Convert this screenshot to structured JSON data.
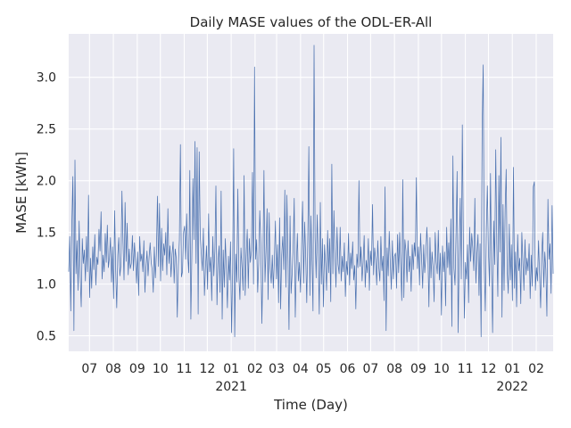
{
  "chart_data": {
    "type": "line",
    "title": "Daily MASE values of the ODL-ER-All",
    "xlabel": "Time (Day)",
    "ylabel": "MASE [kWh]",
    "x_start": "2020-06-04",
    "x_end": "2022-02-23",
    "ylim": [
      0.35,
      3.42
    ],
    "y_ticks": [
      0.5,
      1.0,
      1.5,
      2.0,
      2.5,
      3.0
    ],
    "y_tick_labels": [
      "0.5",
      "1.0",
      "1.5",
      "2.0",
      "2.5",
      "3.0"
    ],
    "x_ticks": [
      {
        "date": "2020-07-01",
        "label": "07",
        "year": ""
      },
      {
        "date": "2020-08-01",
        "label": "08",
        "year": ""
      },
      {
        "date": "2020-09-01",
        "label": "09",
        "year": ""
      },
      {
        "date": "2020-10-01",
        "label": "10",
        "year": ""
      },
      {
        "date": "2020-11-01",
        "label": "11",
        "year": ""
      },
      {
        "date": "2020-12-01",
        "label": "12",
        "year": ""
      },
      {
        "date": "2021-01-01",
        "label": "01",
        "year": "2021"
      },
      {
        "date": "2021-02-01",
        "label": "02",
        "year": ""
      },
      {
        "date": "2021-03-01",
        "label": "03",
        "year": ""
      },
      {
        "date": "2021-04-01",
        "label": "04",
        "year": ""
      },
      {
        "date": "2021-05-01",
        "label": "05",
        "year": ""
      },
      {
        "date": "2021-06-01",
        "label": "06",
        "year": ""
      },
      {
        "date": "2021-07-01",
        "label": "07",
        "year": ""
      },
      {
        "date": "2021-08-01",
        "label": "08",
        "year": ""
      },
      {
        "date": "2021-09-01",
        "label": "09",
        "year": ""
      },
      {
        "date": "2021-10-01",
        "label": "10",
        "year": ""
      },
      {
        "date": "2021-11-01",
        "label": "11",
        "year": ""
      },
      {
        "date": "2021-12-01",
        "label": "12",
        "year": ""
      },
      {
        "date": "2022-01-01",
        "label": "01",
        "year": "2022"
      },
      {
        "date": "2022-02-01",
        "label": "02",
        "year": ""
      }
    ],
    "grid": true,
    "legend": "none",
    "line_color": "#4c72b0",
    "background_color": "#eaeaf2",
    "grid_color": "#ffffff",
    "series": [
      {
        "values": [
          1.12,
          1.46,
          0.74,
          1.58,
          2.04,
          0.55,
          2.2,
          1.1,
          1.42,
          0.94,
          1.61,
          1.07,
          0.78,
          1.44,
          1.2,
          1.33,
          1.03,
          1.46,
          1.12,
          1.86,
          0.87,
          1.25,
          0.96,
          1.36,
          1.14,
          1.48,
          0.99,
          1.26,
          1.19,
          1.53,
          1.32,
          1.7,
          1.05,
          1.28,
          1.12,
          1.49,
          1.21,
          1.57,
          1.16,
          1.25,
          1.45,
          1.02,
          1.36,
          0.86,
          1.71,
          1.13,
          0.77,
          1.28,
          1.45,
          1.08,
          1.18,
          1.9,
          1.41,
          1.04,
          1.79,
          1.22,
          1.59,
          1.09,
          1.34,
          1.15,
          1.2,
          1.47,
          1.13,
          1.4,
          1.23,
          1.01,
          1.31,
          0.89,
          1.46,
          1.22,
          1.29,
          1.12,
          1.42,
          0.92,
          1.16,
          1.32,
          1.08,
          1.26,
          1.4,
          1.21,
          1.14,
          0.92,
          1.36,
          1.06,
          1.29,
          1.85,
          1.17,
          1.78,
          1.03,
          1.54,
          1.13,
          1.39,
          1.28,
          1.5,
          1.09,
          1.73,
          1.2,
          1.37,
          1.07,
          1.29,
          1.41,
          1.01,
          1.34,
          1.25,
          0.68,
          1.18,
          1.43,
          2.35,
          1.07,
          1.12,
          1.5,
          1.56,
          1.24,
          1.68,
          1.28,
          1.11,
          2.1,
          0.66,
          1.31,
          2.02,
          1.43,
          2.38,
          1.2,
          2.32,
          0.71,
          2.28,
          1.46,
          1.3,
          1.13,
          1.54,
          0.89,
          1.16,
          1.37,
          0.95,
          1.68,
          1.12,
          1.26,
          0.84,
          1.46,
          1.08,
          1.32,
          1.95,
          0.8,
          1.21,
          1.37,
          0.92,
          1.9,
          0.66,
          1.33,
          0.97,
          1.44,
          1.14,
          0.77,
          1.27,
          1.04,
          1.41,
          0.53,
          1.12,
          2.31,
          0.49,
          1.29,
          1.02,
          1.92,
          1.07,
          0.85,
          1.35,
          1.16,
          0.94,
          2.05,
          0.89,
          1.27,
          1.53,
          0.96,
          1.44,
          1.21,
          1.32,
          2.08,
          1.0,
          3.1,
          1.24,
          1.43,
          0.92,
          1.2,
          1.71,
          1.39,
          0.62,
          1.17,
          2.1,
          1.02,
          1.33,
          1.73,
          0.85,
          1.69,
          1.15,
          1.01,
          1.28,
          0.96,
          1.24,
          1.61,
          1.05,
          1.38,
          0.82,
          1.64,
          0.76,
          1.28,
          1.46,
          1.14,
          1.91,
          0.97,
          1.86,
          1.24,
          0.56,
          1.66,
          0.91,
          1.1,
          1.36,
          1.83,
          0.68,
          1.17,
          1.49,
          1.03,
          1.21,
          0.92,
          1.39,
          1.8,
          1.01,
          1.6,
          1.26,
          0.82,
          1.43,
          2.33,
          0.89,
          1.66,
          1.22,
          0.74,
          3.31,
          1.45,
          1.06,
          1.67,
          1.28,
          0.71,
          1.79,
          1.0,
          1.44,
          0.78,
          1.38,
          1.2,
          0.94,
          1.52,
          1.11,
          1.44,
          0.83,
          2.16,
          1.1,
          1.71,
          1.28,
          0.97,
          1.55,
          1.19,
          1.1,
          1.55,
          1.03,
          1.27,
          1.12,
          1.4,
          0.88,
          1.22,
          1.09,
          1.49,
          0.99,
          1.3,
          1.15,
          1.41,
          1.04,
          1.18,
          0.76,
          1.29,
          1.16,
          2.0,
          1.17,
          1.36,
          1.03,
          1.21,
          1.47,
          0.97,
          1.23,
          1.11,
          1.44,
          0.94,
          1.32,
          1.18,
          1.77,
          1.09,
          1.35,
          1.24,
          0.99,
          1.42,
          1.16,
          1.03,
          1.46,
          1.13,
          1.27,
          0.84,
          1.94,
          0.55,
          1.35,
          1.08,
          1.51,
          1.21,
          0.95,
          1.42,
          1.05,
          1.27,
          1.3,
          0.96,
          1.48,
          1.11,
          1.5,
          1.18,
          0.84,
          2.01,
          0.87,
          1.43,
          1.32,
          1.02,
          1.42,
          1.12,
          1.27,
          0.93,
          1.38,
          1.14,
          1.4,
          1.27,
          2.03,
          1.15,
          1.36,
          0.99,
          1.49,
          1.24,
          0.96,
          1.38,
          1.11,
          1.27,
          1.55,
          1.32,
          0.78,
          1.45,
          1.06,
          1.31,
          1.16,
          0.83,
          1.5,
          1.22,
          1.1,
          1.52,
          1.04,
          1.3,
          0.7,
          1.37,
          1.12,
          1.31,
          0.79,
          1.55,
          1.16,
          1.4,
          1.09,
          1.63,
          0.59,
          2.24,
          1.15,
          0.99,
          1.5,
          2.09,
          0.53,
          1.27,
          1.83,
          1.05,
          2.54,
          1.42,
          0.67,
          1.21,
          1.05,
          1.38,
          0.82,
          1.55,
          1.22,
          1.49,
          1.35,
          1.13,
          1.83,
          1.01,
          1.29,
          1.48,
          0.89,
          1.39,
          0.49,
          2.52,
          3.12,
          1.2,
          0.74,
          1.53,
          1.95,
          1.32,
          0.98,
          2.07,
          1.13,
          0.53,
          1.61,
          1.19,
          2.3,
          1.4,
          0.88,
          2.05,
          1.31,
          2.42,
          0.68,
          1.77,
          0.94,
          1.72,
          2.11,
          1.12,
          0.91,
          1.58,
          1.04,
          1.38,
          0.84,
          2.13,
          0.96,
          1.31,
          0.78,
          1.48,
          1.13,
          1.25,
          0.81,
          1.5,
          1.22,
          0.94,
          1.43,
          1.09,
          1.25,
          1.13,
          1.39,
          0.86,
          1.28,
          0.98,
          1.94,
          1.99,
          0.94,
          1.16,
          1.03,
          1.42,
          1.09,
          0.77,
          1.28,
          1.5,
          0.97,
          1.31,
          1.14,
          0.69,
          1.82,
          1.24,
          1.39,
          0.91,
          1.76,
          1.1
        ]
      }
    ]
  }
}
